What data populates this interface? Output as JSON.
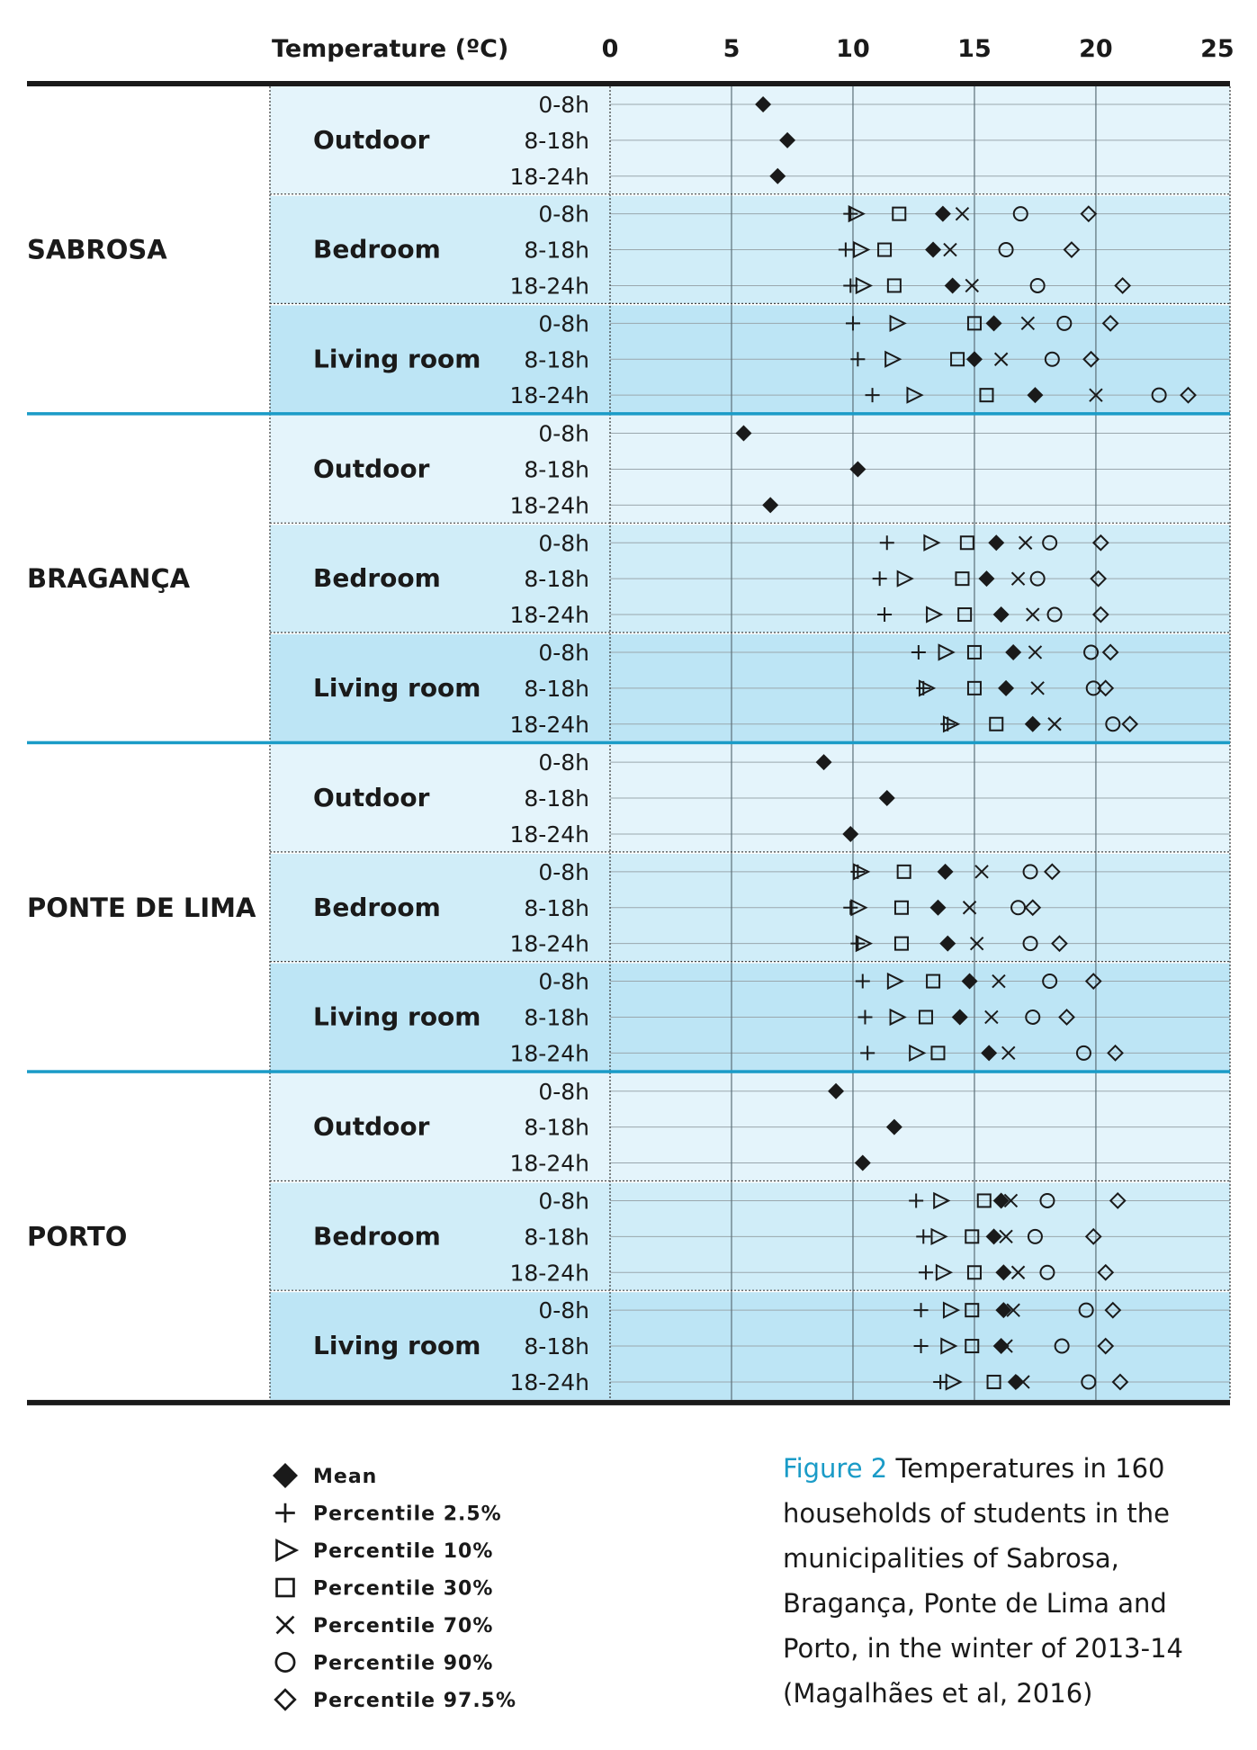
{
  "chart_data": {
    "type": "scatter",
    "title": "",
    "xlabel": "Temperature (ºC)",
    "xlim": [
      0,
      25
    ],
    "xticks": [
      0,
      5,
      10,
      15,
      20,
      25
    ],
    "grid": true,
    "legend_position": "bottom-left",
    "series_keys": [
      "p2_5",
      "p10",
      "p30",
      "mean",
      "p70",
      "p90",
      "p97_5"
    ],
    "series": [
      {
        "key": "mean",
        "name": "Mean",
        "marker": "filled-diamond"
      },
      {
        "key": "p2_5",
        "name": "Percentile 2.5%",
        "marker": "plus"
      },
      {
        "key": "p10",
        "name": "Percentile 10%",
        "marker": "triangle-right"
      },
      {
        "key": "p30",
        "name": "Percentile 30%",
        "marker": "square"
      },
      {
        "key": "p70",
        "name": "Percentile 70%",
        "marker": "x"
      },
      {
        "key": "p90",
        "name": "Percentile 90%",
        "marker": "circle"
      },
      {
        "key": "p97_5",
        "name": "Percentile 97.5%",
        "marker": "diamond"
      }
    ],
    "groups": [
      {
        "municipality": "SABROSA",
        "rooms": [
          {
            "room": "Outdoor",
            "periods": [
              {
                "period": "0-8h",
                "values": {
                  "mean": 6.3
                }
              },
              {
                "period": "8-18h",
                "values": {
                  "mean": 7.3
                }
              },
              {
                "period": "18-24h",
                "values": {
                  "mean": 6.9
                }
              }
            ]
          },
          {
            "room": "Bedroom",
            "periods": [
              {
                "period": "0-8h",
                "values": {
                  "p2_5": 9.9,
                  "p10": 10.1,
                  "p30": 11.9,
                  "mean": 13.7,
                  "p70": 14.5,
                  "p90": 16.9,
                  "p97_5": 19.7
                }
              },
              {
                "period": "8-18h",
                "values": {
                  "p2_5": 9.7,
                  "p10": 10.3,
                  "p30": 11.3,
                  "mean": 13.3,
                  "p70": 14.0,
                  "p90": 16.3,
                  "p97_5": 19.0
                }
              },
              {
                "period": "18-24h",
                "values": {
                  "p2_5": 9.9,
                  "p10": 10.4,
                  "p30": 11.7,
                  "mean": 14.1,
                  "p70": 14.9,
                  "p90": 17.6,
                  "p97_5": 21.1
                }
              }
            ]
          },
          {
            "room": "Living room",
            "periods": [
              {
                "period": "0-8h",
                "values": {
                  "p2_5": 10.0,
                  "p10": 11.8,
                  "p30": 15.0,
                  "mean": 15.8,
                  "p70": 17.2,
                  "p90": 18.7,
                  "p97_5": 20.6
                }
              },
              {
                "period": "8-18h",
                "values": {
                  "p2_5": 10.2,
                  "p10": 11.6,
                  "p30": 14.3,
                  "mean": 15.0,
                  "p70": 16.1,
                  "p90": 18.2,
                  "p97_5": 19.8
                }
              },
              {
                "period": "18-24h",
                "values": {
                  "p2_5": 10.8,
                  "p10": 12.5,
                  "p30": 15.5,
                  "mean": 17.5,
                  "p70": 20.0,
                  "p90": 22.6,
                  "p97_5": 23.8
                }
              }
            ]
          }
        ]
      },
      {
        "municipality": "BRAGANÇA",
        "rooms": [
          {
            "room": "Outdoor",
            "periods": [
              {
                "period": "0-8h",
                "values": {
                  "mean": 5.5
                }
              },
              {
                "period": "8-18h",
                "values": {
                  "mean": 10.2
                }
              },
              {
                "period": "18-24h",
                "values": {
                  "mean": 6.6
                }
              }
            ]
          },
          {
            "room": "Bedroom",
            "periods": [
              {
                "period": "0-8h",
                "values": {
                  "p2_5": 11.4,
                  "p10": 13.2,
                  "p30": 14.7,
                  "mean": 15.9,
                  "p70": 17.1,
                  "p90": 18.1,
                  "p97_5": 20.2
                }
              },
              {
                "period": "8-18h",
                "values": {
                  "p2_5": 11.1,
                  "p10": 12.1,
                  "p30": 14.5,
                  "mean": 15.5,
                  "p70": 16.8,
                  "p90": 17.6,
                  "p97_5": 20.1
                }
              },
              {
                "period": "18-24h",
                "values": {
                  "p2_5": 11.3,
                  "p10": 13.3,
                  "p30": 14.6,
                  "mean": 16.1,
                  "p70": 17.4,
                  "p90": 18.3,
                  "p97_5": 20.2
                }
              }
            ]
          },
          {
            "room": "Living room",
            "periods": [
              {
                "period": "0-8h",
                "values": {
                  "p2_5": 12.7,
                  "p10": 13.8,
                  "p30": 15.0,
                  "mean": 16.6,
                  "p70": 17.5,
                  "p90": 19.8,
                  "p97_5": 20.6
                }
              },
              {
                "period": "8-18h",
                "values": {
                  "p2_5": 12.9,
                  "p10": 13.0,
                  "p30": 15.0,
                  "mean": 16.3,
                  "p70": 17.6,
                  "p90": 19.9,
                  "p97_5": 20.4
                }
              },
              {
                "period": "18-24h",
                "values": {
                  "p2_5": 13.9,
                  "p10": 14.0,
                  "p30": 15.9,
                  "mean": 17.4,
                  "p70": 18.3,
                  "p90": 20.7,
                  "p97_5": 21.4
                }
              }
            ]
          }
        ]
      },
      {
        "municipality": "PONTE DE LIMA",
        "rooms": [
          {
            "room": "Outdoor",
            "periods": [
              {
                "period": "0-8h",
                "values": {
                  "mean": 8.8
                }
              },
              {
                "period": "8-18h",
                "values": {
                  "mean": 11.4
                }
              },
              {
                "period": "18-24h",
                "values": {
                  "mean": 9.9
                }
              }
            ]
          },
          {
            "room": "Bedroom",
            "periods": [
              {
                "period": "0-8h",
                "values": {
                  "p2_5": 10.2,
                  "p10": 10.3,
                  "p30": 12.1,
                  "mean": 13.8,
                  "p70": 15.3,
                  "p90": 17.3,
                  "p97_5": 18.2
                }
              },
              {
                "period": "8-18h",
                "values": {
                  "p2_5": 9.9,
                  "p10": 10.2,
                  "p30": 12.0,
                  "mean": 13.5,
                  "p70": 14.8,
                  "p90": 16.8,
                  "p97_5": 17.4
                }
              },
              {
                "period": "18-24h",
                "values": {
                  "p2_5": 10.2,
                  "p10": 10.4,
                  "p30": 12.0,
                  "mean": 13.9,
                  "p70": 15.1,
                  "p90": 17.3,
                  "p97_5": 18.5
                }
              }
            ]
          },
          {
            "room": "Living room",
            "periods": [
              {
                "period": "0-8h",
                "values": {
                  "p2_5": 10.4,
                  "p10": 11.7,
                  "p30": 13.3,
                  "mean": 14.8,
                  "p70": 16.0,
                  "p90": 18.1,
                  "p97_5": 19.9
                }
              },
              {
                "period": "8-18h",
                "values": {
                  "p2_5": 10.5,
                  "p10": 11.8,
                  "p30": 13.0,
                  "mean": 14.4,
                  "p70": 15.7,
                  "p90": 17.4,
                  "p97_5": 18.8
                }
              },
              {
                "period": "18-24h",
                "values": {
                  "p2_5": 10.6,
                  "p10": 12.6,
                  "p30": 13.5,
                  "mean": 15.6,
                  "p70": 16.4,
                  "p90": 19.5,
                  "p97_5": 20.8
                }
              }
            ]
          }
        ]
      },
      {
        "municipality": "PORTO",
        "rooms": [
          {
            "room": "Outdoor",
            "periods": [
              {
                "period": "0-8h",
                "values": {
                  "mean": 9.3
                }
              },
              {
                "period": "8-18h",
                "values": {
                  "mean": 11.7
                }
              },
              {
                "period": "18-24h",
                "values": {
                  "mean": 10.4
                }
              }
            ]
          },
          {
            "room": "Bedroom",
            "periods": [
              {
                "period": "0-8h",
                "values": {
                  "p2_5": 12.6,
                  "p10": 13.6,
                  "p30": 15.4,
                  "mean": 16.1,
                  "p70": 16.5,
                  "p90": 18.0,
                  "p97_5": 20.9
                }
              },
              {
                "period": "8-18h",
                "values": {
                  "p2_5": 12.9,
                  "p10": 13.5,
                  "p30": 14.9,
                  "mean": 15.8,
                  "p70": 16.3,
                  "p90": 17.5,
                  "p97_5": 19.9
                }
              },
              {
                "period": "18-24h",
                "values": {
                  "p2_5": 13.0,
                  "p10": 13.7,
                  "p30": 15.0,
                  "mean": 16.2,
                  "p70": 16.8,
                  "p90": 18.0,
                  "p97_5": 20.4
                }
              }
            ]
          },
          {
            "room": "Living room",
            "periods": [
              {
                "period": "0-8h",
                "values": {
                  "p2_5": 12.8,
                  "p10": 14.0,
                  "p30": 14.9,
                  "mean": 16.2,
                  "p70": 16.6,
                  "p90": 19.6,
                  "p97_5": 20.7
                }
              },
              {
                "period": "8-18h",
                "values": {
                  "p2_5": 12.8,
                  "p10": 13.9,
                  "p30": 14.9,
                  "mean": 16.1,
                  "p70": 16.3,
                  "p90": 18.6,
                  "p97_5": 20.4
                }
              },
              {
                "period": "18-24h",
                "values": {
                  "p2_5": 13.6,
                  "p10": 14.1,
                  "p30": 15.8,
                  "mean": 16.7,
                  "p70": 17.0,
                  "p90": 19.7,
                  "p97_5": 21.0
                }
              }
            ]
          }
        ]
      }
    ]
  },
  "caption": {
    "figure_label": "Figure 2",
    "text": "Temperatures in 160 households of students in the municipalities of Sabrosa, Bragança, Ponte de Lima and Porto, in the winter of 2013-14 (Magalhães et al, 2016)"
  },
  "colors": {
    "room_outdoor": "#e4f4fb",
    "room_bedroom": "#d0edf8",
    "room_living": "#bde5f5",
    "group_separator": "#1a9bc7",
    "caption_accent": "#1a9bc7",
    "ink": "#1a1a1a"
  }
}
